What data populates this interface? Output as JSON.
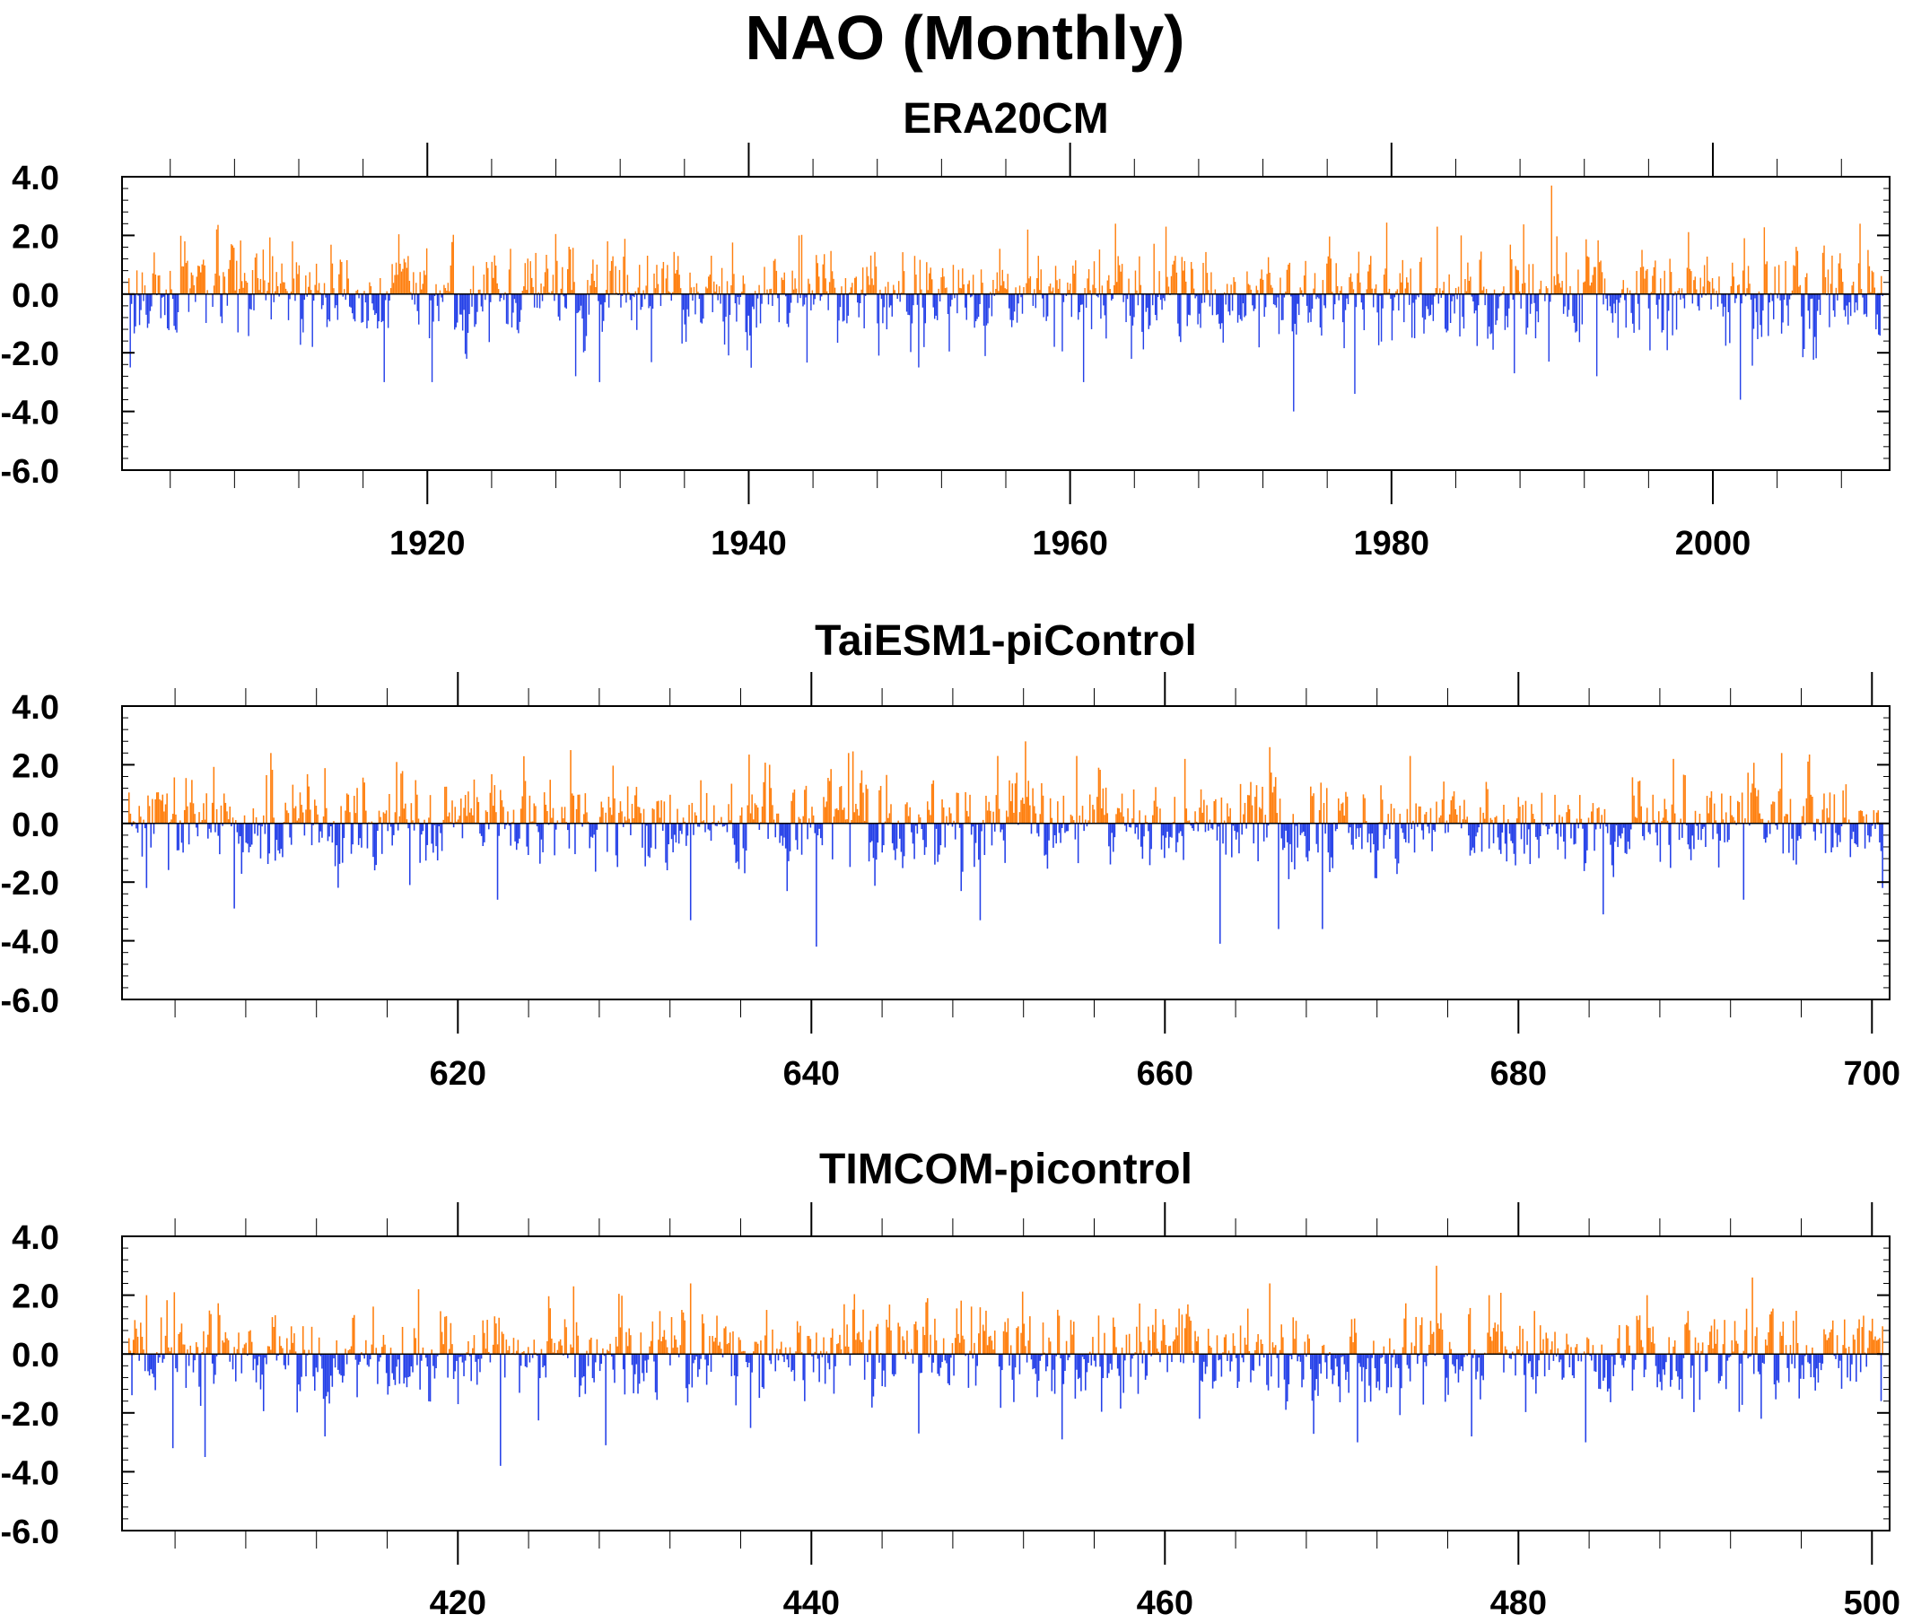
{
  "title": "NAO (Monthly)",
  "colors": {
    "positive": "#ff7f0e",
    "negative": "#2440e8",
    "axis": "#000000"
  },
  "chart_data": [
    {
      "type": "bar",
      "title": "ERA20CM",
      "xlabel": "",
      "ylabel": "",
      "xlim": [
        1901,
        2011
      ],
      "ylim": [
        -6.0,
        4.0
      ],
      "yticks": [
        -6.0,
        -4.0,
        -2.0,
        0.0,
        2.0,
        4.0
      ],
      "ytick_labels": [
        "-6.0",
        "-4.0",
        "-2.0",
        "0.0",
        "2.0",
        "4.0"
      ],
      "xticks": [
        1920,
        1940,
        1960,
        1980,
        2000
      ],
      "xtick_labels": [
        "1920",
        "1940",
        "1960",
        "1980",
        "2000"
      ],
      "grid": false,
      "seed": 17,
      "months": 1320,
      "extremes": [
        {
          "x": 1901.1,
          "y": -2.5
        },
        {
          "x": 1904.5,
          "y": 1.8
        },
        {
          "x": 1912.5,
          "y": -1.8
        },
        {
          "x": 1917.0,
          "y": -3.0
        },
        {
          "x": 1920.0,
          "y": -3.0
        },
        {
          "x": 1929.0,
          "y": -2.8
        },
        {
          "x": 1930.5,
          "y": -3.0
        },
        {
          "x": 1931.0,
          "y": 1.8
        },
        {
          "x": 1943.0,
          "y": 2.0
        },
        {
          "x": 1950.5,
          "y": -2.5
        },
        {
          "x": 1957.3,
          "y": 2.2
        },
        {
          "x": 1960.8,
          "y": -3.0
        },
        {
          "x": 1962.8,
          "y": 2.4
        },
        {
          "x": 1966.0,
          "y": 2.3
        },
        {
          "x": 1974.0,
          "y": -4.0
        },
        {
          "x": 1977.8,
          "y": -3.4
        },
        {
          "x": 1983.0,
          "y": 2.3
        },
        {
          "x": 1984.5,
          "y": 2.0
        },
        {
          "x": 1987.8,
          "y": -2.7
        },
        {
          "x": 1990.2,
          "y": 3.7
        },
        {
          "x": 1990.0,
          "y": -2.3
        },
        {
          "x": 1993.0,
          "y": -2.8
        },
        {
          "x": 2002.0,
          "y": -3.6
        },
        {
          "x": 2009.5,
          "y": 2.4
        },
        {
          "x": 2010.5,
          "y": -1.2
        }
      ]
    },
    {
      "type": "bar",
      "title": "TaiESM1-piControl",
      "xlabel": "",
      "ylabel": "",
      "xlim": [
        601,
        701
      ],
      "ylim": [
        -6.0,
        4.0
      ],
      "yticks": [
        -6.0,
        -4.0,
        -2.0,
        0.0,
        2.0,
        4.0
      ],
      "ytick_labels": [
        "-6.0",
        "-4.0",
        "-2.0",
        "0.0",
        "2.0",
        "4.0"
      ],
      "xticks": [
        620,
        640,
        660,
        680,
        700
      ],
      "xtick_labels": [
        "620",
        "640",
        "660",
        "680",
        "700"
      ],
      "grid": false,
      "seed": 29,
      "months": 1200,
      "extremes": [
        {
          "x": 602.0,
          "y": -2.2
        },
        {
          "x": 607.0,
          "y": -2.9
        },
        {
          "x": 609.1,
          "y": 2.4
        },
        {
          "x": 616.5,
          "y": 1.7
        },
        {
          "x": 617.0,
          "y": -2.1
        },
        {
          "x": 622.0,
          "y": -2.6
        },
        {
          "x": 626.2,
          "y": 2.5
        },
        {
          "x": 633.0,
          "y": -3.3
        },
        {
          "x": 637.5,
          "y": 2.0
        },
        {
          "x": 640.2,
          "y": -4.2
        },
        {
          "x": 642.0,
          "y": 2.4
        },
        {
          "x": 649.5,
          "y": -3.3
        },
        {
          "x": 650.5,
          "y": 2.3
        },
        {
          "x": 655.0,
          "y": 2.3
        },
        {
          "x": 661.2,
          "y": 2.2
        },
        {
          "x": 663.2,
          "y": -4.1
        },
        {
          "x": 666.0,
          "y": 2.6
        },
        {
          "x": 666.5,
          "y": -3.6
        },
        {
          "x": 669.0,
          "y": -3.6
        },
        {
          "x": 674.0,
          "y": 2.3
        },
        {
          "x": 685.0,
          "y": -3.1
        },
        {
          "x": 689.0,
          "y": 2.2
        },
        {
          "x": 693.0,
          "y": -2.6
        },
        {
          "x": 695.2,
          "y": 2.4
        },
        {
          "x": 700.9,
          "y": -2.2
        }
      ]
    },
    {
      "type": "bar",
      "title": "TIMCOM-picontrol",
      "xlabel": "",
      "ylabel": "",
      "xlim": [
        401,
        501
      ],
      "ylim": [
        -6.0,
        4.0
      ],
      "yticks": [
        -6.0,
        -4.0,
        -2.0,
        0.0,
        2.0,
        4.0
      ],
      "ytick_labels": [
        "-6.0",
        "-4.0",
        "-2.0",
        "0.0",
        "2.0",
        "4.0"
      ],
      "xticks": [
        420,
        440,
        460,
        480,
        500
      ],
      "xtick_labels": [
        "420",
        "440",
        "460",
        "480",
        "500"
      ],
      "grid": false,
      "seed": 43,
      "months": 1200,
      "extremes": [
        {
          "x": 401.2,
          "y": -1.4
        },
        {
          "x": 402.0,
          "y": 2.0
        },
        {
          "x": 403.5,
          "y": -3.2
        },
        {
          "x": 403.6,
          "y": 2.1
        },
        {
          "x": 405.3,
          "y": -3.5
        },
        {
          "x": 412.2,
          "y": -2.8
        },
        {
          "x": 417.5,
          "y": 2.2
        },
        {
          "x": 422.2,
          "y": -3.8
        },
        {
          "x": 426.3,
          "y": 2.3
        },
        {
          "x": 428.2,
          "y": -3.1
        },
        {
          "x": 433.0,
          "y": 2.4
        },
        {
          "x": 446.0,
          "y": -2.7
        },
        {
          "x": 454.2,
          "y": -2.9
        },
        {
          "x": 462.0,
          "y": -2.2
        },
        {
          "x": 466.0,
          "y": 2.4
        },
        {
          "x": 471.0,
          "y": -3.0
        },
        {
          "x": 477.5,
          "y": -2.8
        },
        {
          "x": 478.5,
          "y": 2.0
        },
        {
          "x": 484.0,
          "y": -3.0
        },
        {
          "x": 487.5,
          "y": 2.0
        },
        {
          "x": 493.5,
          "y": 2.6
        },
        {
          "x": 494.0,
          "y": -2.2
        },
        {
          "x": 500.8,
          "y": -1.6
        }
      ]
    }
  ]
}
